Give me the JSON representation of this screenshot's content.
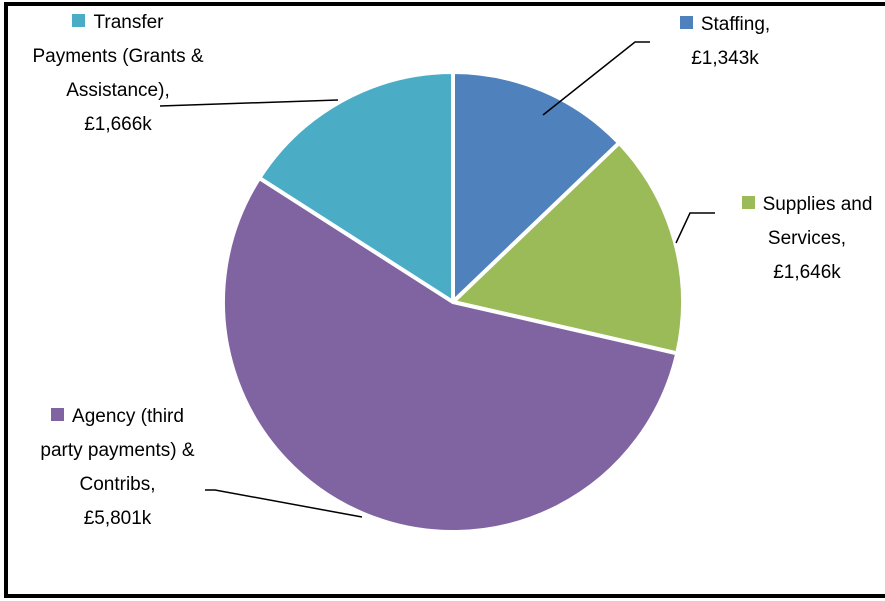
{
  "chart_data": {
    "type": "pie",
    "categories": [
      "Staffing,",
      "Supplies and Services,",
      "Agency (third party payments) & Contribs,",
      "Transfer Payments (Grants & Assistance),"
    ],
    "values": [
      1343,
      1646,
      5801,
      1666
    ],
    "value_labels": [
      "£1,343k",
      "£1,646k",
      "£5,801k",
      "£1,666k"
    ],
    "colors": [
      "#4f81bd",
      "#9bbb59",
      "#8064a2",
      "#4bacc6"
    ]
  }
}
